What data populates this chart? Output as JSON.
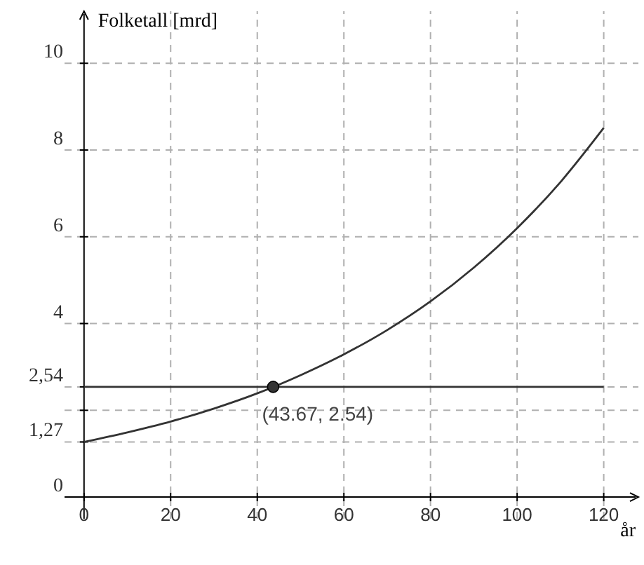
{
  "chart_data": {
    "type": "line",
    "xlabel": "år",
    "ylabel": "Folketall [mrd]",
    "xlim": [
      -4.5,
      128
    ],
    "ylim": [
      -0.5,
      11.2
    ],
    "xticks": [
      0,
      20,
      40,
      60,
      80,
      100,
      120
    ],
    "yticks": [
      0,
      {
        "value": 1.27,
        "label": "1,27"
      },
      {
        "value": 2,
        "label": null
      },
      {
        "value": 2.54,
        "label": "2,54"
      },
      4,
      6,
      8,
      10
    ],
    "grid": true,
    "series": [
      {
        "color": "#333333",
        "x": [
          0,
          10,
          20,
          30,
          40,
          50,
          60,
          70,
          80,
          90,
          100,
          110,
          120
        ],
        "values": [
          1.27,
          1.49,
          1.74,
          2.04,
          2.39,
          2.81,
          3.29,
          3.85,
          4.51,
          5.29,
          6.2,
          7.26,
          8.51
        ]
      },
      {
        "color": "#333333",
        "x": [
          0,
          120
        ],
        "values": [
          2.54,
          2.54
        ]
      },
      {
        "type": "scatter",
        "color": "#333333",
        "marker": "circle",
        "x": [
          43.67
        ],
        "values": [
          2.54
        ]
      }
    ],
    "annotations": [
      {
        "text": "(43.67, 2.54)",
        "x": 43.67,
        "y": 2.54
      }
    ]
  }
}
